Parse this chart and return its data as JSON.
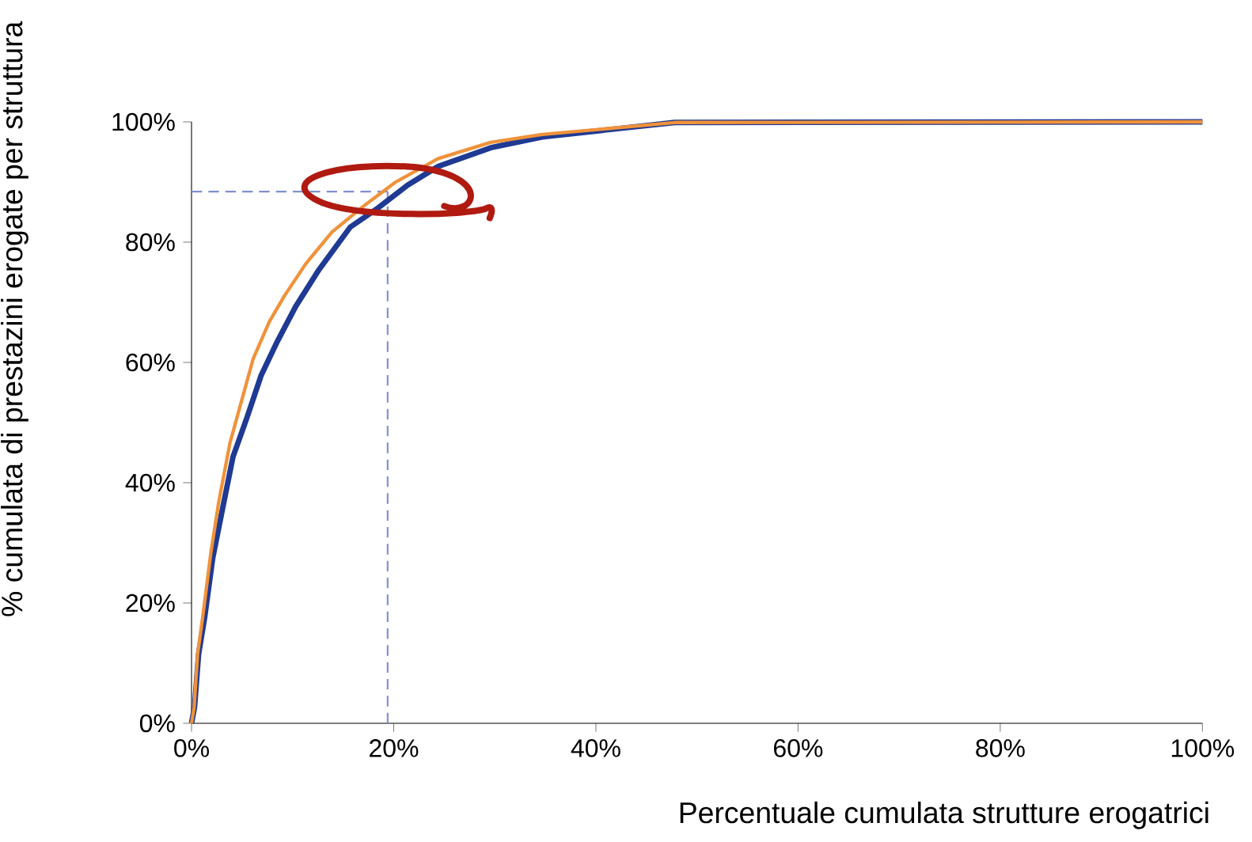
{
  "chart_data": {
    "type": "line",
    "xlabel": "Percentuale cumulata strutture erogatrici",
    "ylabel": "% cumulata di prestazini erogate per struttura",
    "series": [
      {
        "color": "#1f3a93",
        "x": [
          0,
          0.3,
          0.7,
          1.3,
          2.1,
          3.0,
          4.1,
          5.5,
          6.9,
          8.4,
          10.3,
          12.6,
          15.7,
          18.3,
          21.4,
          24.4,
          29.6,
          34.7,
          47.8,
          100
        ],
        "values": [
          0,
          2.7,
          11.5,
          17.6,
          27.5,
          35.1,
          44.3,
          50.9,
          57.9,
          63.2,
          69.3,
          75.4,
          82.5,
          85.5,
          89.5,
          92.6,
          95.7,
          97.5,
          99.9,
          100
        ]
      },
      {
        "color": "#f0923a",
        "x": [
          0,
          0.26,
          0.6,
          1.1,
          1.9,
          2.7,
          3.8,
          4.8,
          6.1,
          7.7,
          9.2,
          11.3,
          13.9,
          17.1,
          20.2,
          24.4,
          29.6,
          34.7,
          47.8,
          100
        ],
        "values": [
          0,
          2.7,
          11.5,
          17.6,
          28.2,
          36.9,
          46.6,
          52.7,
          60.6,
          66.8,
          71.1,
          76.4,
          81.7,
          86.1,
          90,
          93.9,
          96.6,
          97.9,
          99.9,
          100
        ]
      }
    ],
    "xlim": [
      0,
      100
    ],
    "ylim": [
      0,
      100
    ],
    "xticks": [
      {
        "value": 0,
        "label": "0%"
      },
      {
        "value": 20,
        "label": "20%"
      },
      {
        "value": 40,
        "label": "40%"
      },
      {
        "value": 60,
        "label": "60%"
      },
      {
        "value": 80,
        "label": "80%"
      },
      {
        "value": 100,
        "label": "100%"
      }
    ],
    "yticks": [
      {
        "value": 0,
        "label": "0%"
      },
      {
        "value": 20,
        "label": "20%"
      },
      {
        "value": 40,
        "label": "40%"
      },
      {
        "value": 60,
        "label": "60%"
      },
      {
        "value": 80,
        "label": "80%"
      },
      {
        "value": 100,
        "label": "100%"
      }
    ],
    "ref_lines": [
      {
        "axis": "x",
        "value": 19.4,
        "color": "#7f8fd0",
        "line_style": "dashed"
      },
      {
        "axis": "y",
        "value": 88.4,
        "color": "#7f8fd0",
        "line_style": "dashed"
      }
    ],
    "grid": false
  }
}
